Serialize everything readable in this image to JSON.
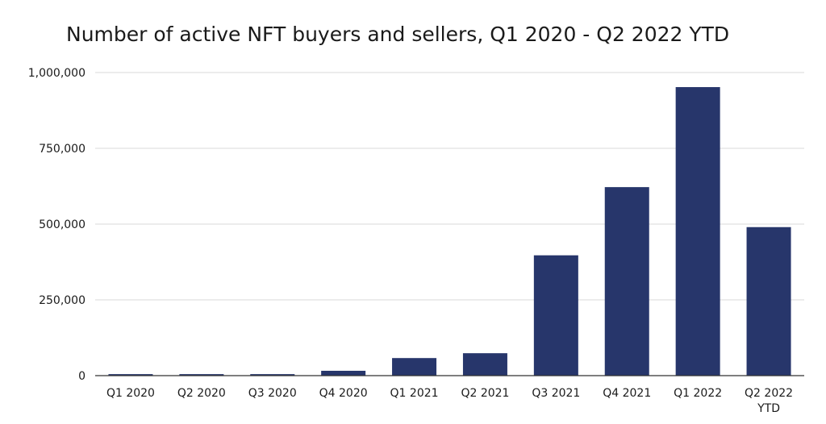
{
  "chart_data": {
    "type": "bar",
    "title": "Number of active NFT buyers and sellers, Q1 2020 - Q2 2022 YTD",
    "xlabel": "",
    "ylabel": "",
    "categories": [
      "Q1 2020",
      "Q2 2020",
      "Q3 2020",
      "Q4 2020",
      "Q1 2021",
      "Q2 2021",
      "Q3 2021",
      "Q4 2021",
      "Q1 2022",
      "Q2 2022 YTD"
    ],
    "category_lines": [
      [
        "Q1 2020"
      ],
      [
        "Q2 2020"
      ],
      [
        "Q3 2020"
      ],
      [
        "Q4 2020"
      ],
      [
        "Q1 2021"
      ],
      [
        "Q2 2021"
      ],
      [
        "Q3 2021"
      ],
      [
        "Q4 2021"
      ],
      [
        "Q1 2022"
      ],
      [
        "Q2 2022",
        "YTD"
      ]
    ],
    "values": [
      5000,
      5000,
      5000,
      16000,
      58000,
      74000,
      397000,
      622000,
      952000,
      490000
    ],
    "ylim": [
      0,
      1000000
    ],
    "yticks": [
      0,
      250000,
      500000,
      750000,
      1000000
    ],
    "ytick_labels": [
      "0",
      "250,000",
      "500,000",
      "750,000",
      "1,000,000"
    ],
    "grid": true,
    "legend": "none",
    "colors": {
      "bar": "#27366b",
      "grid": "#d9d9d9",
      "axis": "#333333"
    }
  }
}
